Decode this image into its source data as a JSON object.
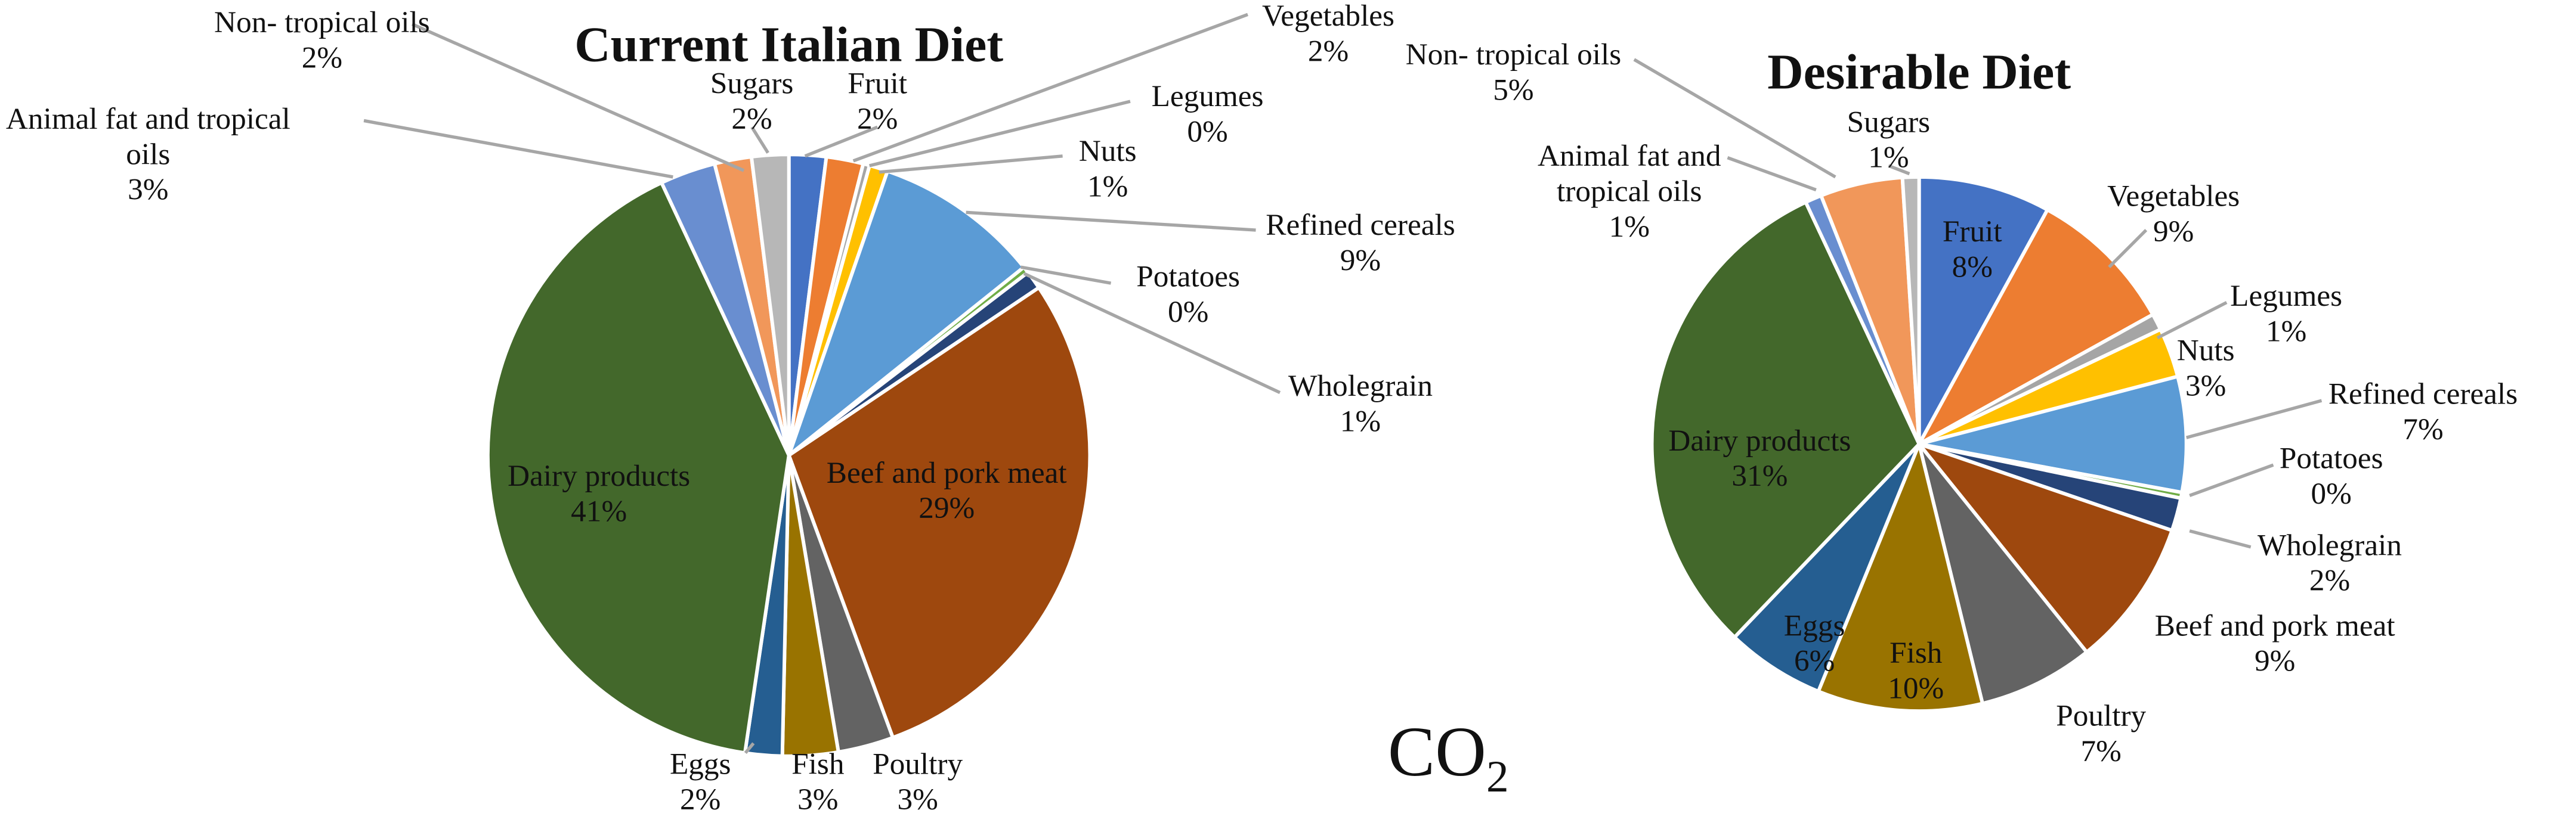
{
  "annotation": {
    "main": "CO",
    "subscript": "2"
  },
  "chart_data": [
    {
      "type": "pie",
      "title": "Current Italian Diet",
      "slices": [
        {
          "label_lines": [
            "Fruit"
          ],
          "value": 2,
          "pct": "2%",
          "color": "#4472C4"
        },
        {
          "label_lines": [
            "Vegetables"
          ],
          "value": 2,
          "pct": "2%",
          "color": "#ED7D31"
        },
        {
          "label_lines": [
            "Legumes"
          ],
          "value": 0,
          "pct": "0%",
          "color": "#A5A5A5"
        },
        {
          "label_lines": [
            "Nuts"
          ],
          "value": 1,
          "pct": "1%",
          "color": "#FFC000"
        },
        {
          "label_lines": [
            "Refined cereals"
          ],
          "value": 9,
          "pct": "9%",
          "color": "#5B9BD5"
        },
        {
          "label_lines": [
            "Potatoes"
          ],
          "value": 0,
          "pct": "0%",
          "color": "#70AD47"
        },
        {
          "label_lines": [
            "Wholegrain"
          ],
          "value": 1,
          "pct": "1%",
          "color": "#264478"
        },
        {
          "label_lines": [
            "Beef and pork meat"
          ],
          "value": 29,
          "pct": "29%",
          "color": "#9E480E"
        },
        {
          "label_lines": [
            "Poultry"
          ],
          "value": 3,
          "pct": "3%",
          "color": "#636363"
        },
        {
          "label_lines": [
            "Fish"
          ],
          "value": 3,
          "pct": "3%",
          "color": "#997300"
        },
        {
          "label_lines": [
            "Eggs"
          ],
          "value": 2,
          "pct": "2%",
          "color": "#255E91"
        },
        {
          "label_lines": [
            "Dairy products"
          ],
          "value": 41,
          "pct": "41%",
          "color": "#43682B"
        },
        {
          "label_lines": [
            "Animal  fat and tropical",
            "oils"
          ],
          "value": 3,
          "pct": "3%",
          "color": "#698ED0"
        },
        {
          "label_lines": [
            "Non- tropical oils"
          ],
          "value": 2,
          "pct": "2%",
          "color": "#F1975A"
        },
        {
          "label_lines": [
            "Sugars"
          ],
          "value": 2,
          "pct": "2%",
          "color": "#B7B7B7"
        }
      ]
    },
    {
      "type": "pie",
      "title": "Desirable Diet",
      "slices": [
        {
          "label_lines": [
            "Fruit"
          ],
          "value": 8,
          "pct": "8%",
          "color": "#4472C4"
        },
        {
          "label_lines": [
            "Vegetables"
          ],
          "value": 9,
          "pct": "9%",
          "color": "#ED7D31"
        },
        {
          "label_lines": [
            "Legumes"
          ],
          "value": 1,
          "pct": "1%",
          "color": "#A5A5A5"
        },
        {
          "label_lines": [
            "Nuts"
          ],
          "value": 3,
          "pct": "3%",
          "color": "#FFC000"
        },
        {
          "label_lines": [
            "Refined cereals"
          ],
          "value": 7,
          "pct": "7%",
          "color": "#5B9BD5"
        },
        {
          "label_lines": [
            "Potatoes"
          ],
          "value": 0,
          "pct": "0%",
          "color": "#70AD47"
        },
        {
          "label_lines": [
            "Wholegrain"
          ],
          "value": 2,
          "pct": "2%",
          "color": "#264478"
        },
        {
          "label_lines": [
            "Beef and pork meat"
          ],
          "value": 9,
          "pct": "9%",
          "color": "#9E480E"
        },
        {
          "label_lines": [
            "Poultry"
          ],
          "value": 7,
          "pct": "7%",
          "color": "#636363"
        },
        {
          "label_lines": [
            "Fish"
          ],
          "value": 10,
          "pct": "10%",
          "color": "#997300"
        },
        {
          "label_lines": [
            "Eggs"
          ],
          "value": 6,
          "pct": "6%",
          "color": "#255E91"
        },
        {
          "label_lines": [
            "Dairy products"
          ],
          "value": 31,
          "pct": "31%",
          "color": "#43682B"
        },
        {
          "label_lines": [
            "Animal  fat and",
            "tropical oils"
          ],
          "value": 1,
          "pct": "1%",
          "color": "#698ED0"
        },
        {
          "label_lines": [
            "Non- tropical oils"
          ],
          "value": 5,
          "pct": "5%",
          "color": "#F1975A"
        },
        {
          "label_lines": [
            "Sugars"
          ],
          "value": 1,
          "pct": "1%",
          "color": "#B7B7B7"
        }
      ]
    }
  ]
}
